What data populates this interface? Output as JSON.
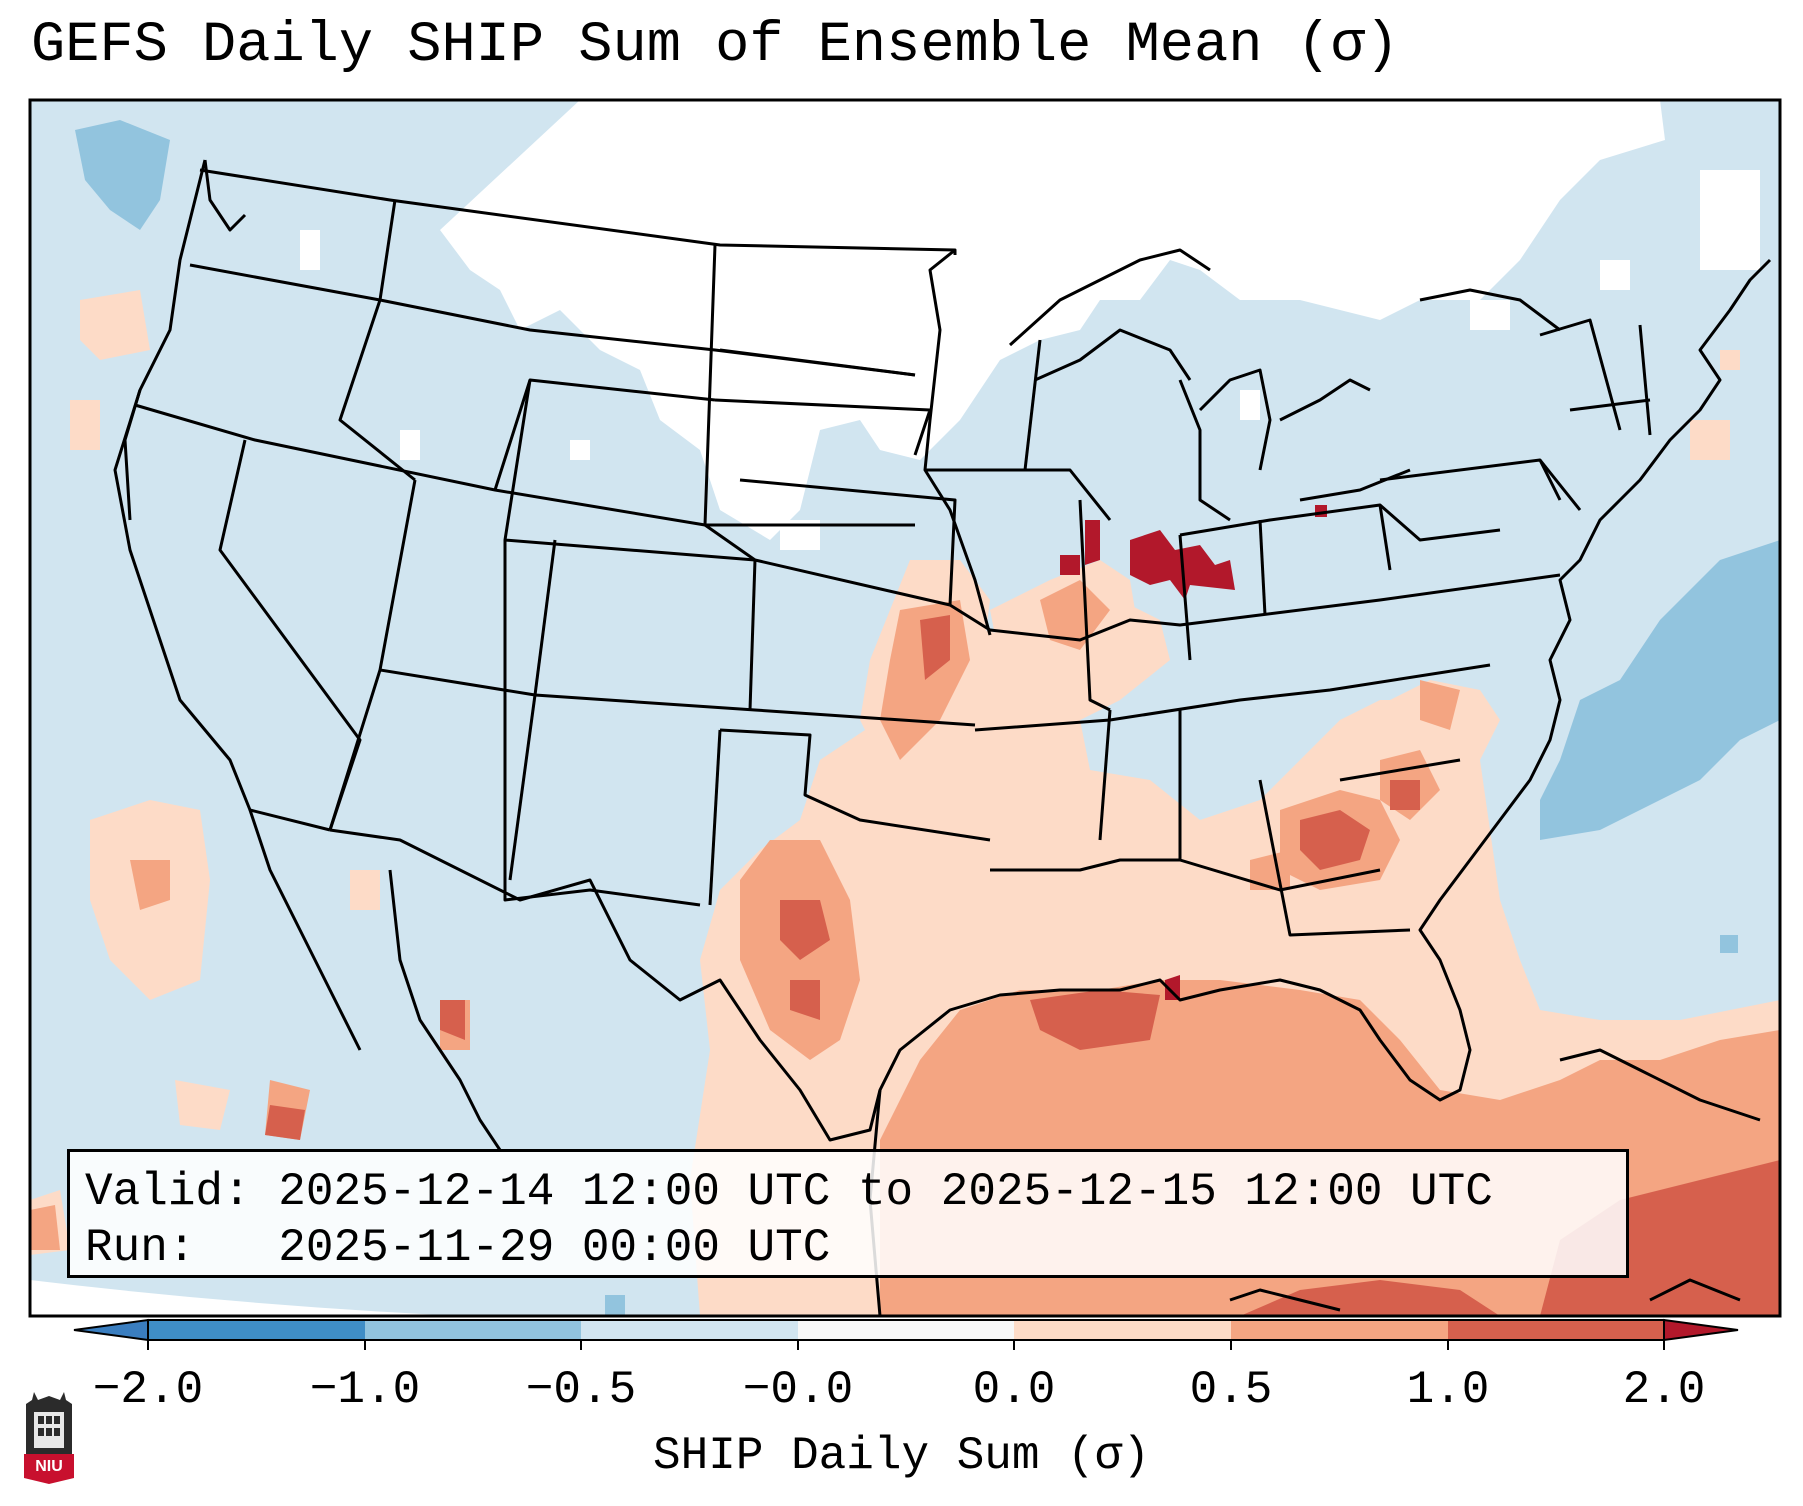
{
  "title": "GEFS Daily SHIP Sum of Ensemble Mean (σ)",
  "info": {
    "valid_label": "Valid:",
    "valid_value": "2025-12-14 12:00 UTC to 2025-12-15 12:00 UTC",
    "run_label": "Run:",
    "run_value": "2025-11-29 00:00 UTC"
  },
  "colorbar": {
    "label": "SHIP Daily Sum (σ)",
    "ticks": [
      "−2.0",
      "−1.0",
      "−0.5",
      "−0.0",
      "0.0",
      "0.5",
      "1.0",
      "2.0"
    ],
    "colors": {
      "below": "#3a7ec0",
      "neg_2_to_1": "#3f8ec6",
      "neg_1_to_05": "#92c4de",
      "neg_05_to_0": "#d1e5f0",
      "zero_band": "#f7f7f7",
      "pos_0_to_05": "#fddbc7",
      "pos_05_to_1": "#f4a582",
      "pos_1_to_2": "#d6604d",
      "above": "#b2182b"
    }
  },
  "map": {
    "region": "Contiguous United States",
    "background_fill": "#d1e5f0",
    "features": [
      "state-borders",
      "country-borders",
      "coastlines"
    ]
  },
  "logo": {
    "text": "NIU"
  }
}
